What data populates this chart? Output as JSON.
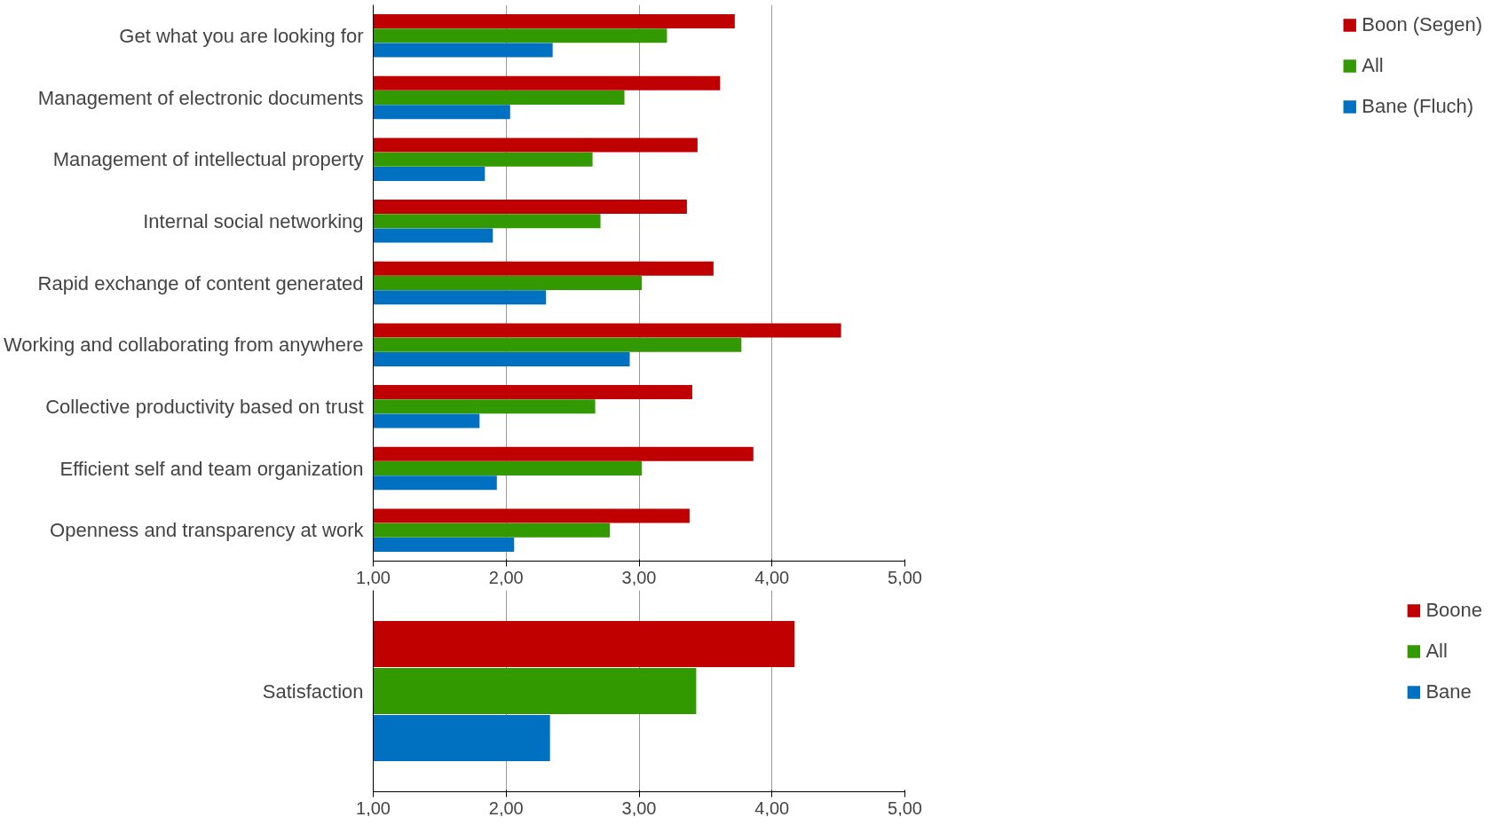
{
  "chart_data": [
    {
      "type": "bar",
      "orientation": "horizontal",
      "categories": [
        "Get what you are looking for",
        "Management of electronic documents",
        "Management of intellectual property",
        "Internal social networking",
        "Rapid exchange of content generated",
        "Working and collaborating from anywhere",
        "Collective productivity based on trust",
        "Efficient self and team organization",
        "Openness and transparency at work"
      ],
      "series": [
        {
          "name": "Boon (Segen)",
          "color": "#c00000",
          "values": [
            3.72,
            3.61,
            3.44,
            3.36,
            3.56,
            4.52,
            3.4,
            3.86,
            3.38
          ]
        },
        {
          "name": "All",
          "color": "#339900",
          "values": [
            3.21,
            2.89,
            2.65,
            2.71,
            3.02,
            3.77,
            2.67,
            3.02,
            2.78
          ]
        },
        {
          "name": "Bane (Fluch)",
          "color": "#0070c0",
          "values": [
            2.35,
            2.03,
            1.84,
            1.9,
            2.3,
            2.93,
            1.8,
            1.93,
            2.06
          ]
        }
      ],
      "xlim": [
        1,
        5
      ],
      "xticks": [
        {
          "value": 1,
          "label": "1,00"
        },
        {
          "value": 2,
          "label": "2,00"
        },
        {
          "value": 3,
          "label": "3,00"
        },
        {
          "value": 4,
          "label": "4,00"
        },
        {
          "value": 5,
          "label": "5,00"
        }
      ],
      "grid": "x",
      "legend": "right"
    },
    {
      "type": "bar",
      "orientation": "horizontal",
      "categories": [
        "Satisfaction"
      ],
      "series": [
        {
          "name": "Boone",
          "color": "#c00000",
          "values": [
            4.17
          ]
        },
        {
          "name": "All",
          "color": "#339900",
          "values": [
            3.43
          ]
        },
        {
          "name": "Bane",
          "color": "#0070c0",
          "values": [
            2.33
          ]
        }
      ],
      "xlim": [
        1,
        5
      ],
      "xticks": [
        {
          "value": 1,
          "label": "1,00"
        },
        {
          "value": 2,
          "label": "2,00"
        },
        {
          "value": 3,
          "label": "3,00"
        },
        {
          "value": 4,
          "label": "4,00"
        },
        {
          "value": 5,
          "label": "5,00"
        }
      ],
      "grid": "x",
      "legend": "right"
    }
  ]
}
